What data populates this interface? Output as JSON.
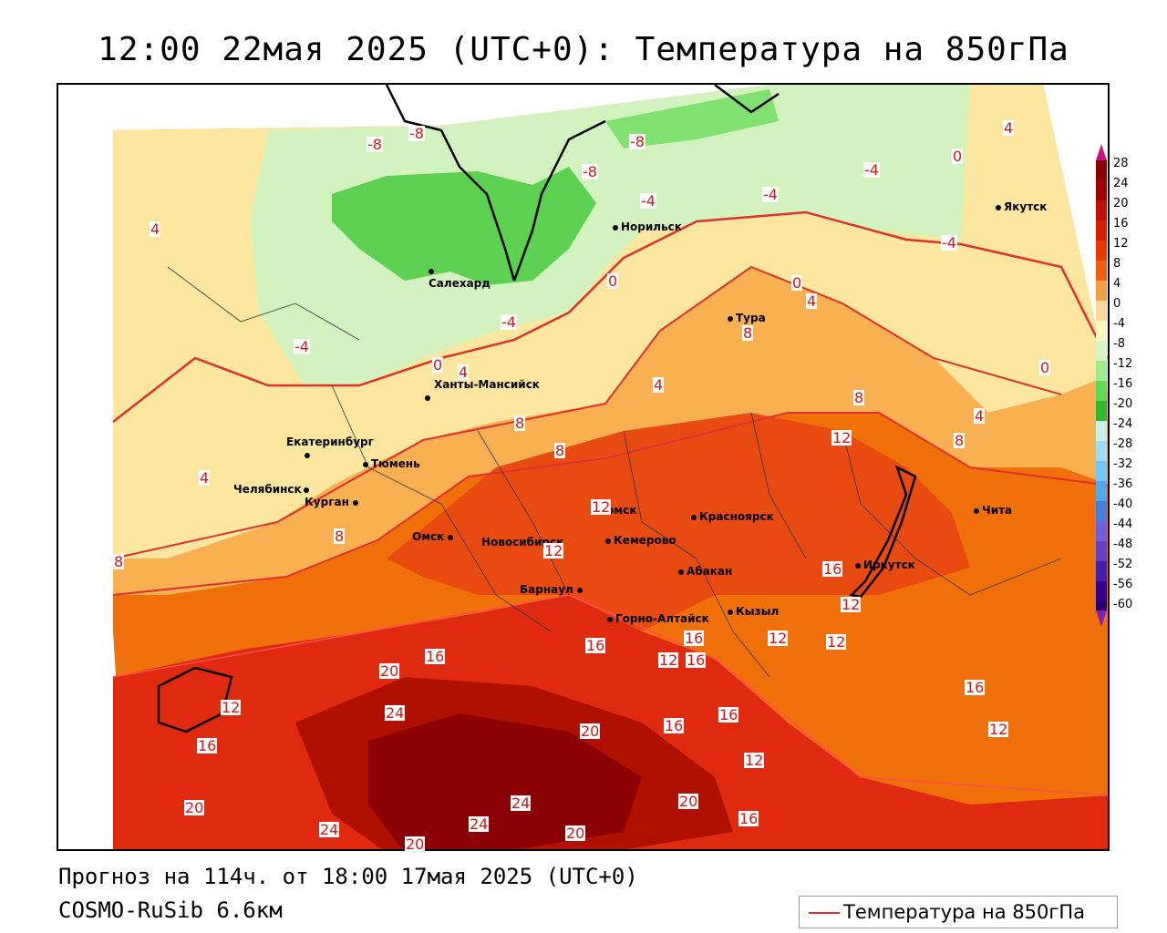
{
  "title": "12:00 22мая 2025 (UTC+0): Температура на 850гПа",
  "footer": {
    "forecast": "Прогноз на 114ч. от 18:00 17мая 2025 (UTC+0)",
    "model": "COSMO-RuSib 6.6км"
  },
  "legend": {
    "label": "Температура на 850гПа",
    "line_color": "#e03030"
  },
  "colorbar": {
    "labels": [
      "28",
      "24",
      "20",
      "16",
      "12",
      "8",
      "4",
      "0",
      "-4",
      "-8",
      "-12",
      "-16",
      "-20",
      "-24",
      "-28",
      "-32",
      "-36",
      "-40",
      "-44",
      "-48",
      "-52",
      "-56",
      "-60"
    ],
    "colors": [
      "#8b0000",
      "#a00000",
      "#c01000",
      "#d82000",
      "#e83a00",
      "#f06010",
      "#f5a040",
      "#fdd89a",
      "#fff6c0",
      "#d8f5c8",
      "#a0ec90",
      "#60d858",
      "#30b830",
      "#c8f0f0",
      "#98e0f8",
      "#70c8f8",
      "#50a8f0",
      "#4080e0",
      "#7060e0",
      "#6040c8",
      "#4020b0",
      "#300090",
      "#200070"
    ]
  },
  "cities": [
    {
      "name": "Якутск"
    },
    {
      "name": "Норильск"
    },
    {
      "name": "Салехард"
    },
    {
      "name": "Тура"
    },
    {
      "name": "Ханты-Мансийск"
    },
    {
      "name": "Екатеринбург"
    },
    {
      "name": "Тюмень"
    },
    {
      "name": "Челябинск"
    },
    {
      "name": "Курган"
    },
    {
      "name": "Омск"
    },
    {
      "name": "Новосибирск"
    },
    {
      "name": "Томск"
    },
    {
      "name": "Кемерово"
    },
    {
      "name": "Красноярск"
    },
    {
      "name": "Барнаул"
    },
    {
      "name": "Абакан"
    },
    {
      "name": "Кызыл"
    },
    {
      "name": "Горно-Алтайск"
    },
    {
      "name": "Иркутск"
    },
    {
      "name": "Чита"
    }
  ],
  "contour_labels": [
    "-8",
    "-8",
    "-8",
    "-4",
    "-4",
    "-4",
    "-4",
    "-4",
    "-4",
    "-8",
    "0",
    "0",
    "0",
    "0",
    "0",
    "4",
    "4",
    "4",
    "4",
    "4",
    "4",
    "4",
    "8",
    "8",
    "8",
    "8",
    "8",
    "8",
    "8",
    "12",
    "12",
    "12",
    "12",
    "12",
    "12",
    "12",
    "12",
    "12",
    "12",
    "16",
    "16",
    "16",
    "16",
    "16",
    "16",
    "16",
    "16",
    "16",
    "16",
    "20",
    "20",
    "20",
    "20",
    "20",
    "20",
    "24",
    "24",
    "24",
    "24"
  ]
}
